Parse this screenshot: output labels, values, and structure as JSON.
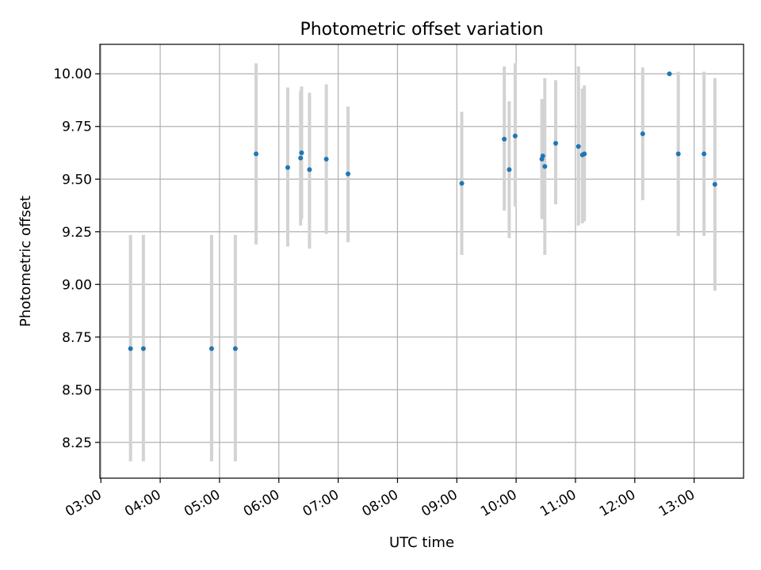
{
  "chart_data": {
    "type": "scatter",
    "title": "Photometric offset variation",
    "xlabel": "UTC time",
    "ylabel": "Photometric offset",
    "xlim": [
      "02:59",
      "13:50"
    ],
    "ylim": [
      8.08,
      10.14
    ],
    "x_ticks": [
      "03:00",
      "04:00",
      "05:00",
      "06:00",
      "07:00",
      "08:00",
      "09:00",
      "10:00",
      "11:00",
      "12:00",
      "13:00"
    ],
    "y_ticks": [
      "8.25",
      "8.50",
      "8.75",
      "9.00",
      "9.25",
      "9.50",
      "9.75",
      "10.00"
    ],
    "grid": true,
    "point_color": "#1f77b4",
    "errorbar_color": "#d3d3d3",
    "points": [
      {
        "x": "03:30",
        "y": 8.695,
        "low": 8.16,
        "high": 9.235
      },
      {
        "x": "03:43",
        "y": 8.695,
        "low": 8.16,
        "high": 9.235
      },
      {
        "x": "04:52",
        "y": 8.695,
        "low": 8.16,
        "high": 9.235
      },
      {
        "x": "05:16",
        "y": 8.695,
        "low": 8.16,
        "high": 9.235
      },
      {
        "x": "05:37",
        "y": 9.62,
        "low": 9.19,
        "high": 10.05
      },
      {
        "x": "06:09",
        "y": 9.555,
        "low": 9.18,
        "high": 9.935
      },
      {
        "x": "06:22",
        "y": 9.6,
        "low": 9.28,
        "high": 9.92
      },
      {
        "x": "06:23",
        "y": 9.625,
        "low": 9.31,
        "high": 9.94
      },
      {
        "x": "06:31",
        "y": 9.545,
        "low": 9.17,
        "high": 9.91
      },
      {
        "x": "06:48",
        "y": 9.595,
        "low": 9.24,
        "high": 9.95
      },
      {
        "x": "07:10",
        "y": 9.525,
        "low": 9.2,
        "high": 9.845
      },
      {
        "x": "09:05",
        "y": 9.48,
        "low": 9.14,
        "high": 9.82
      },
      {
        "x": "09:48",
        "y": 9.69,
        "low": 9.35,
        "high": 10.035
      },
      {
        "x": "09:53",
        "y": 9.545,
        "low": 9.22,
        "high": 9.87
      },
      {
        "x": "09:59",
        "y": 9.705,
        "low": 9.37,
        "high": 10.05
      },
      {
        "x": "10:26",
        "y": 9.595,
        "low": 9.31,
        "high": 9.88
      },
      {
        "x": "10:27",
        "y": 9.61,
        "low": 9.31,
        "high": 9.88
      },
      {
        "x": "10:29",
        "y": 9.56,
        "low": 9.14,
        "high": 9.98
      },
      {
        "x": "10:40",
        "y": 9.67,
        "low": 9.38,
        "high": 9.97
      },
      {
        "x": "11:03",
        "y": 9.655,
        "low": 9.28,
        "high": 10.035
      },
      {
        "x": "11:07",
        "y": 9.615,
        "low": 9.29,
        "high": 9.93
      },
      {
        "x": "11:09",
        "y": 9.62,
        "low": 9.3,
        "high": 9.945
      },
      {
        "x": "12:08",
        "y": 9.715,
        "low": 9.4,
        "high": 10.03
      },
      {
        "x": "12:35",
        "y": 10.0,
        "low": 10.0,
        "high": 10.0
      },
      {
        "x": "12:44",
        "y": 9.62,
        "low": 9.23,
        "high": 10.01
      },
      {
        "x": "13:10",
        "y": 9.62,
        "low": 9.23,
        "high": 10.01
      },
      {
        "x": "13:21",
        "y": 9.475,
        "low": 8.97,
        "high": 9.98
      }
    ]
  }
}
